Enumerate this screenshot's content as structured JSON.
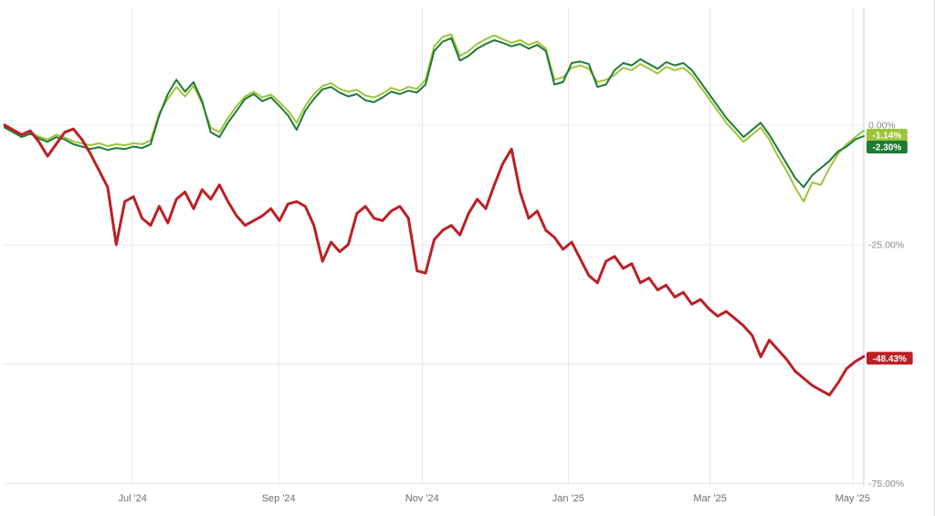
{
  "chart_data": {
    "type": "line",
    "title": "",
    "background": "#ffffff",
    "grid": true,
    "legend_position": "right-edge-badges",
    "x_axis": {
      "ticks": [
        {
          "label": "Jul '24",
          "pos": 0.149
        },
        {
          "label": "Sep '24",
          "pos": 0.319
        },
        {
          "label": "Nov '24",
          "pos": 0.486
        },
        {
          "label": "Jan '25",
          "pos": 0.656
        },
        {
          "label": "Mar '25",
          "pos": 0.821
        },
        {
          "label": "May '25",
          "pos": 0.987
        }
      ]
    },
    "y_axis": {
      "unit": "%",
      "range": [
        -78,
        25
      ],
      "gridline_values": [
        0,
        -25,
        -50,
        -75
      ],
      "tick_labels": [
        {
          "label": "0.00%",
          "value": 0
        },
        {
          "label": "-25.00%",
          "value": -25
        },
        {
          "label": "-75.00%",
          "value": -75
        }
      ]
    },
    "series": [
      {
        "id": "light-green",
        "name": "light-green-series",
        "color": "#9dc53a",
        "stroke_width": 2,
        "last_label": "-1.14%",
        "last_value": -1.14,
        "values": [
          0,
          -1,
          -2,
          -1.4,
          -2.4,
          -3,
          -2,
          -2.6,
          -3.4,
          -3.8,
          -4.2,
          -3.8,
          -4.4,
          -4,
          -4.2,
          -3.8,
          -4,
          -3.2,
          2.5,
          5.5,
          8,
          6,
          8.2,
          4.5,
          -0.5,
          -1.5,
          1.5,
          4,
          6,
          7,
          5.8,
          6.4,
          4.8,
          3,
          0.5,
          4,
          6.5,
          8.2,
          8.8,
          7.6,
          7,
          7.4,
          6.2,
          5.8,
          6.6,
          7.8,
          7.2,
          8,
          7.6,
          9.5,
          16.5,
          18.5,
          19,
          14.5,
          15.5,
          17,
          18,
          18.8,
          18,
          17.2,
          17.8,
          16.8,
          17.5,
          16,
          9.5,
          10,
          12,
          12.5,
          11.8,
          9,
          9.5,
          10.5,
          12,
          11.5,
          12.8,
          11.8,
          10.8,
          12.2,
          11.5,
          12,
          10.5,
          8,
          5.5,
          3,
          0.5,
          -1.5,
          -3.5,
          -2,
          -0.5,
          -3,
          -6.5,
          -9.5,
          -13,
          -16,
          -12,
          -12.5,
          -9,
          -6,
          -4,
          -2.5,
          -1.14
        ]
      },
      {
        "id": "dark-green",
        "name": "dark-green-series",
        "color": "#1e7b34",
        "stroke_width": 2,
        "last_label": "-2.30%",
        "last_value": -2.3,
        "values": [
          -0.5,
          -1.5,
          -2.5,
          -1.8,
          -2.8,
          -3.5,
          -2.5,
          -3,
          -4,
          -4.5,
          -5,
          -4.6,
          -5.2,
          -4.8,
          -5,
          -4.5,
          -4.8,
          -4,
          2,
          6.5,
          9.5,
          7,
          9,
          5,
          -1.5,
          -2.5,
          0.5,
          3,
          5.5,
          6.5,
          5,
          5.8,
          4,
          2,
          -1,
          3,
          5.5,
          7.5,
          8,
          6.8,
          6,
          6.5,
          5.2,
          4.8,
          5.8,
          7,
          6.5,
          7.2,
          6.8,
          8.5,
          15.5,
          17.5,
          18.2,
          13.5,
          14.5,
          16,
          17,
          17.8,
          17.2,
          16.5,
          17,
          16,
          16.8,
          15.5,
          8.5,
          9,
          13,
          13.3,
          12.8,
          8,
          8.5,
          11.5,
          13,
          12.5,
          13.8,
          12.8,
          11.8,
          13.2,
          12.5,
          13,
          11.5,
          9,
          6.5,
          4,
          1.5,
          -0.5,
          -2.5,
          -1,
          0.5,
          -2,
          -5,
          -8,
          -11,
          -13,
          -10.5,
          -9,
          -7.5,
          -5.5,
          -4.5,
          -3,
          -2.3
        ]
      },
      {
        "id": "red",
        "name": "red-series",
        "color": "#bb2025",
        "stroke_width": 3,
        "last_label": "-48.43%",
        "last_value": -48.43,
        "values": [
          0,
          -1,
          -2,
          -1.2,
          -3.5,
          -6.5,
          -4,
          -1.5,
          -0.8,
          -3,
          -6,
          -9.5,
          -13,
          -25,
          -16,
          -15,
          -19.5,
          -21,
          -17,
          -20.5,
          -15.5,
          -14,
          -17.5,
          -13.5,
          -15.5,
          -12.5,
          -16,
          -19,
          -21,
          -20,
          -19,
          -17.5,
          -20,
          -16.5,
          -16,
          -17,
          -21,
          -28.5,
          -24.5,
          -26.5,
          -25,
          -18.5,
          -17,
          -19.5,
          -20,
          -18,
          -17,
          -19.5,
          -30.5,
          -31,
          -24,
          -22,
          -21,
          -23,
          -18.5,
          -15.5,
          -17.5,
          -12.5,
          -8,
          -5,
          -14,
          -19.5,
          -18,
          -22,
          -23.5,
          -26,
          -24.5,
          -28,
          -31.5,
          -33,
          -28.5,
          -27.5,
          -30,
          -29,
          -33,
          -32,
          -34.5,
          -33.5,
          -36,
          -35,
          -37.5,
          -36.5,
          -38.5,
          -40,
          -39,
          -40.5,
          -42,
          -44,
          -48.5,
          -45,
          -47,
          -49,
          -51.5,
          -53,
          -54.5,
          -55.5,
          -56.5,
          -54,
          -51,
          -49.5,
          -48.43
        ]
      }
    ]
  }
}
